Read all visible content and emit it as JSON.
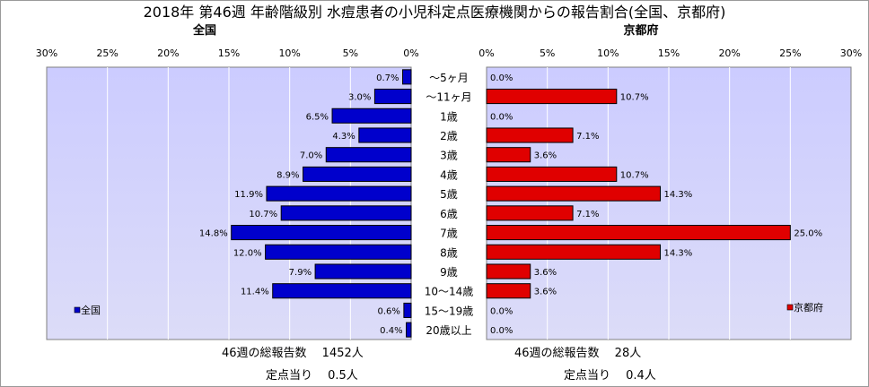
{
  "chart_data": [
    {
      "type": "bar",
      "orientation": "horizontal",
      "direction": "right-to-left",
      "subtitle": "全国",
      "categories": [
        "～5ヶ月",
        "～11ヶ月",
        "1歳",
        "2歳",
        "3歳",
        "4歳",
        "5歳",
        "6歳",
        "7歳",
        "8歳",
        "9歳",
        "10～14歳",
        "15～19歳",
        "20歳以上"
      ],
      "series": [
        {
          "name": "全国",
          "values": [
            0.7,
            3.0,
            6.5,
            4.3,
            7.0,
            8.9,
            11.9,
            10.7,
            14.8,
            12.0,
            7.9,
            11.4,
            0.6,
            0.4
          ]
        }
      ],
      "value_labels": [
        "0.7%",
        "3.0%",
        "6.5%",
        "4.3%",
        "7.0%",
        "8.9%",
        "11.9%",
        "10.7%",
        "14.8%",
        "12.0%",
        "7.9%",
        "11.4%",
        "0.6%",
        "0.4%"
      ],
      "xlim": [
        0,
        30
      ],
      "xticks": [
        "0%",
        "5%",
        "10%",
        "15%",
        "20%",
        "25%",
        "30%"
      ],
      "legend": "bottom-left",
      "grid": true,
      "color": "#0000cc"
    },
    {
      "type": "bar",
      "orientation": "horizontal",
      "direction": "left-to-right",
      "subtitle": "京都府",
      "categories": [
        "～5ヶ月",
        "～11ヶ月",
        "1歳",
        "2歳",
        "3歳",
        "4歳",
        "5歳",
        "6歳",
        "7歳",
        "8歳",
        "9歳",
        "10～14歳",
        "15～19歳",
        "20歳以上"
      ],
      "series": [
        {
          "name": "京都府",
          "values": [
            0.0,
            10.7,
            0.0,
            7.1,
            3.6,
            10.7,
            14.3,
            7.1,
            25.0,
            14.3,
            3.6,
            3.6,
            0.0,
            0.0
          ]
        }
      ],
      "value_labels": [
        "0.0%",
        "10.7%",
        "0.0%",
        "7.1%",
        "3.6%",
        "10.7%",
        "14.3%",
        "7.1%",
        "25.0%",
        "14.3%",
        "3.6%",
        "3.6%",
        "0.0%",
        "0.0%"
      ],
      "xlim": [
        0,
        30
      ],
      "xticks": [
        "0%",
        "5%",
        "10%",
        "15%",
        "20%",
        "25%",
        "30%"
      ],
      "legend": "bottom-right",
      "grid": true,
      "color": "#e00000"
    }
  ],
  "title": "2018年 第46週 年齢階級別 水痘患者の小児科定点医療機関からの報告割合(全国、京都府)",
  "footer": {
    "national_total": "46週の総報告数　 1452人",
    "national_per_site": "定点当り　 0.5人",
    "kyoto_total": "46週の総報告数　 28人",
    "kyoto_per_site": "定点当り　 0.4人"
  },
  "colors": {
    "plot_bg": "#ccccff",
    "national": "#0000cc",
    "kyoto": "#e00000",
    "grid": "#ffffff"
  }
}
